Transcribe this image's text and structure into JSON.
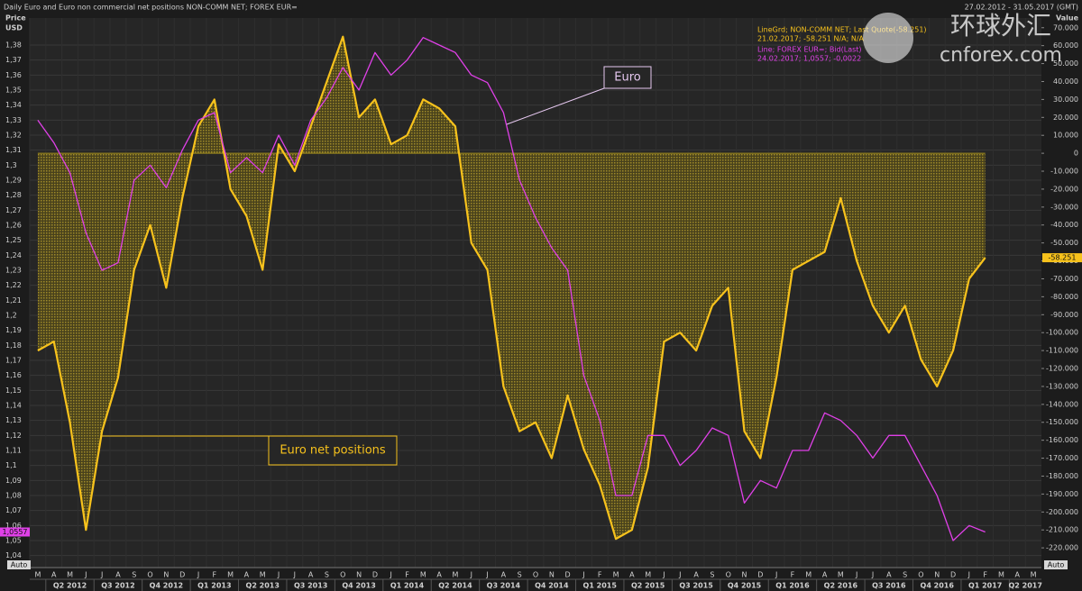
{
  "chart_data": {
    "type": "line",
    "title": "Daily Euro and Euro non commercial net positions NON-COMM NET; FOREX EUR=",
    "date_range": "27.02.2012 - 31.05.2017 (GMT)",
    "y_axis_title": [
      "Price",
      "USD"
    ],
    "y2_axis_title": "Value",
    "watermark": [
      "环球外汇",
      "cnforex.com"
    ],
    "scale_buttons": [
      "Auto",
      "Auto"
    ],
    "x": [
      "2012-03",
      "2012-04",
      "2012-05",
      "2012-06",
      "2012-07",
      "2012-08",
      "2012-09",
      "2012-10",
      "2012-11",
      "2012-12",
      "2013-01",
      "2013-02",
      "2013-03",
      "2013-04",
      "2013-05",
      "2013-06",
      "2013-07",
      "2013-08",
      "2013-09",
      "2013-10",
      "2013-11",
      "2013-12",
      "2014-01",
      "2014-02",
      "2014-03",
      "2014-04",
      "2014-05",
      "2014-06",
      "2014-07",
      "2014-08",
      "2014-09",
      "2014-10",
      "2014-11",
      "2014-12",
      "2015-01",
      "2015-02",
      "2015-03",
      "2015-04",
      "2015-05",
      "2015-06",
      "2015-07",
      "2015-08",
      "2015-09",
      "2015-10",
      "2015-11",
      "2015-12",
      "2016-01",
      "2016-02",
      "2016-03",
      "2016-04",
      "2016-05",
      "2016-06",
      "2016-07",
      "2016-08",
      "2016-09",
      "2016-10",
      "2016-11",
      "2016-12",
      "2017-01",
      "2017-02"
    ],
    "xlim": [
      "2012-03",
      "2017-05"
    ],
    "month_ticks": [
      "M",
      "A",
      "M",
      "J",
      "J",
      "A",
      "S",
      "O",
      "N",
      "D",
      "J",
      "F",
      "M",
      "A",
      "M",
      "J",
      "J",
      "A",
      "S",
      "O",
      "N",
      "D",
      "J",
      "F",
      "M",
      "A",
      "M",
      "J",
      "J",
      "A",
      "S",
      "O",
      "N",
      "D",
      "J",
      "F",
      "M",
      "A",
      "M",
      "J",
      "J",
      "A",
      "S",
      "O",
      "N",
      "D",
      "J",
      "F",
      "M",
      "A",
      "M",
      "J",
      "J",
      "A",
      "S",
      "O",
      "N",
      "D",
      "J",
      "F",
      "M",
      "A",
      "M"
    ],
    "quarter_ticks": [
      "Q2 2012",
      "Q3 2012",
      "Q4 2012",
      "Q1 2013",
      "Q2 2013",
      "Q3 2013",
      "Q4 2013",
      "Q1 2014",
      "Q2 2014",
      "Q3 2014",
      "Q4 2014",
      "Q1 2015",
      "Q2 2015",
      "Q3 2015",
      "Q4 2015",
      "Q1 2016",
      "Q2 2016",
      "Q3 2016",
      "Q4 2016",
      "Q1 2017",
      "Q2 2017"
    ],
    "series": [
      {
        "name": "LineGrd; NON-COMM NET; Last Quote(-58.251)",
        "detail": "21.02.2017; -58.251 N/A; N/A",
        "color": "#f7c21c",
        "fill": "#a08c1e",
        "axis": "y2",
        "last_value_label": "-58.251",
        "values": [
          -110000,
          -105000,
          -150000,
          -210000,
          -155000,
          -125000,
          -65000,
          -40000,
          -75000,
          -25000,
          15000,
          30000,
          -20000,
          -35000,
          -65000,
          5000,
          -10000,
          15000,
          40000,
          65000,
          20000,
          30000,
          5000,
          10000,
          30000,
          25000,
          15000,
          -50000,
          -65000,
          -130000,
          -155000,
          -150000,
          -170000,
          -135000,
          -165000,
          -185000,
          -215000,
          -210000,
          -175000,
          -105000,
          -100000,
          -110000,
          -85000,
          -75000,
          -155000,
          -170000,
          -125000,
          -65000,
          -60000,
          -55000,
          -25000,
          -60000,
          -85000,
          -100000,
          -85000,
          -115000,
          -130000,
          -110000,
          -70000,
          -58251
        ]
      },
      {
        "name": "Line; FOREX EUR=; Bid(Last)",
        "detail": "24.02.2017; 1,0557; -0,0022",
        "color": "#e040e8",
        "last_value_label": "1,0557",
        "values": [
          1.33,
          1.315,
          1.295,
          1.255,
          1.23,
          1.235,
          1.29,
          1.3,
          1.285,
          1.31,
          1.33,
          1.335,
          1.295,
          1.305,
          1.295,
          1.32,
          1.3,
          1.33,
          1.345,
          1.365,
          1.35,
          1.375,
          1.36,
          1.37,
          1.385,
          1.38,
          1.375,
          1.36,
          1.355,
          1.335,
          1.29,
          1.265,
          1.245,
          1.23,
          1.16,
          1.13,
          1.08,
          1.08,
          1.12,
          1.12,
          1.1,
          1.11,
          1.125,
          1.12,
          1.075,
          1.09,
          1.085,
          1.11,
          1.11,
          1.135,
          1.13,
          1.12,
          1.105,
          1.12,
          1.12,
          1.1,
          1.08,
          1.05,
          1.06,
          1.0557
        ]
      }
    ],
    "annotations": [
      "Euro",
      "Euro net positions"
    ],
    "ylim": [
      1.032,
      1.398
    ],
    "yticks": [
      {
        "value": 1.38,
        "label": "1,38"
      },
      {
        "value": 1.37,
        "label": "1,37"
      },
      {
        "value": 1.36,
        "label": "1,36"
      },
      {
        "value": 1.35,
        "label": "1,35"
      },
      {
        "value": 1.34,
        "label": "1,34"
      },
      {
        "value": 1.33,
        "label": "1,33"
      },
      {
        "value": 1.32,
        "label": "1,32"
      },
      {
        "value": 1.31,
        "label": "1,31"
      },
      {
        "value": 1.3,
        "label": "1,3"
      },
      {
        "value": 1.29,
        "label": "1,29"
      },
      {
        "value": 1.28,
        "label": "1,28"
      },
      {
        "value": 1.27,
        "label": "1,27"
      },
      {
        "value": 1.26,
        "label": "1,26"
      },
      {
        "value": 1.25,
        "label": "1,25"
      },
      {
        "value": 1.24,
        "label": "1,24"
      },
      {
        "value": 1.23,
        "label": "1,23"
      },
      {
        "value": 1.22,
        "label": "1,22"
      },
      {
        "value": 1.21,
        "label": "1,21"
      },
      {
        "value": 1.2,
        "label": "1,2"
      },
      {
        "value": 1.19,
        "label": "1,19"
      },
      {
        "value": 1.18,
        "label": "1,18"
      },
      {
        "value": 1.17,
        "label": "1,17"
      },
      {
        "value": 1.16,
        "label": "1,16"
      },
      {
        "value": 1.15,
        "label": "1,15"
      },
      {
        "value": 1.14,
        "label": "1,14"
      },
      {
        "value": 1.13,
        "label": "1,13"
      },
      {
        "value": 1.12,
        "label": "1,12"
      },
      {
        "value": 1.11,
        "label": "1,11"
      },
      {
        "value": 1.1,
        "label": "1,1"
      },
      {
        "value": 1.09,
        "label": "1,09"
      },
      {
        "value": 1.08,
        "label": "1,08"
      },
      {
        "value": 1.07,
        "label": "1,07"
      },
      {
        "value": 1.06,
        "label": "1,06"
      },
      {
        "value": 1.05,
        "label": "1,05"
      },
      {
        "value": 1.04,
        "label": "1,04"
      }
    ],
    "y2lim": [
      -231000,
      75400
    ],
    "y2ticks": [
      {
        "value": 70000,
        "label": "70.000"
      },
      {
        "value": 60000,
        "label": "60.000"
      },
      {
        "value": 50000,
        "label": "50.000"
      },
      {
        "value": 40000,
        "label": "40.000"
      },
      {
        "value": 30000,
        "label": "30.000"
      },
      {
        "value": 20000,
        "label": "20.000"
      },
      {
        "value": 10000,
        "label": "10.000"
      },
      0,
      {
        "value": -10000,
        "label": "-10.000"
      },
      {
        "value": -20000,
        "label": "-20.000"
      },
      {
        "value": -30000,
        "label": "-30.000"
      },
      {
        "value": -40000,
        "label": "-40.000"
      },
      {
        "value": -50000,
        "label": "-50.000"
      },
      {
        "value": -60000,
        "label": "-60.000"
      },
      {
        "value": -70000,
        "label": "-70.000"
      },
      {
        "value": -80000,
        "label": "-80.000"
      },
      {
        "value": -90000,
        "label": "-90.000"
      },
      {
        "value": -100000,
        "label": "-100.000"
      },
      {
        "value": -110000,
        "label": "-110.000"
      },
      {
        "value": -120000,
        "label": "-120.000"
      },
      {
        "value": -130000,
        "label": "-130.000"
      },
      {
        "value": -140000,
        "label": "-140.000"
      },
      {
        "value": -150000,
        "label": "-150.000"
      },
      {
        "value": -160000,
        "label": "-160.000"
      },
      {
        "value": -170000,
        "label": "-170.000"
      },
      {
        "value": -180000,
        "label": "-180.000"
      },
      {
        "value": -190000,
        "label": "-190.000"
      },
      {
        "value": -200000,
        "label": "-200.000"
      },
      {
        "value": -210000,
        "label": "-210.000"
      },
      {
        "value": -220000,
        "label": "-220.000"
      }
    ],
    "grid": true
  }
}
